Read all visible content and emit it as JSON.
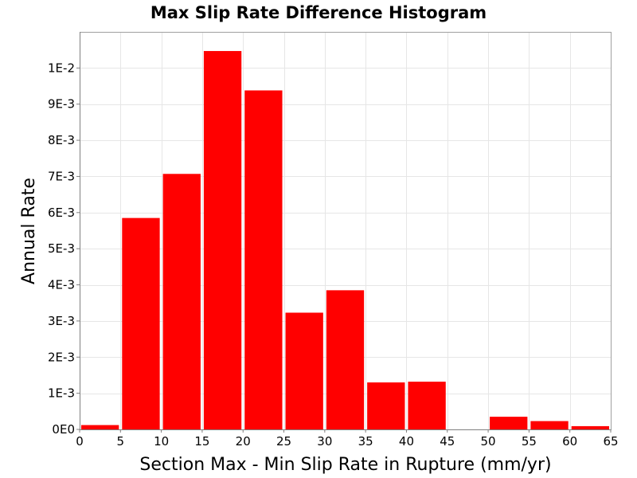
{
  "chart_data": {
    "type": "bar",
    "title": "Max Slip Rate Difference Histogram",
    "xlabel": "Section Max - Min Slip Rate in Rupture (mm/yr)",
    "ylabel": "Annual Rate",
    "xlim": [
      0,
      65
    ],
    "ylim": [
      0,
      0.011
    ],
    "grid": true,
    "bar_color": "#ff0000",
    "bins": [
      {
        "start": 0,
        "end": 5,
        "value": 0.00012
      },
      {
        "start": 5,
        "end": 10,
        "value": 0.00585
      },
      {
        "start": 10,
        "end": 15,
        "value": 0.00707
      },
      {
        "start": 15,
        "end": 20,
        "value": 0.01047
      },
      {
        "start": 20,
        "end": 25,
        "value": 0.00938
      },
      {
        "start": 25,
        "end": 30,
        "value": 0.00323
      },
      {
        "start": 30,
        "end": 35,
        "value": 0.00385
      },
      {
        "start": 35,
        "end": 40,
        "value": 0.0013
      },
      {
        "start": 40,
        "end": 45,
        "value": 0.00132
      },
      {
        "start": 45,
        "end": 50,
        "value": 0.0
      },
      {
        "start": 50,
        "end": 55,
        "value": 0.00035
      },
      {
        "start": 55,
        "end": 60,
        "value": 0.00023
      },
      {
        "start": 60,
        "end": 65,
        "value": 9e-05
      }
    ],
    "x_ticks": [
      {
        "value": 0,
        "label": "0"
      },
      {
        "value": 5,
        "label": "5"
      },
      {
        "value": 10,
        "label": "10"
      },
      {
        "value": 15,
        "label": "15"
      },
      {
        "value": 20,
        "label": "20"
      },
      {
        "value": 25,
        "label": "25"
      },
      {
        "value": 30,
        "label": "30"
      },
      {
        "value": 35,
        "label": "35"
      },
      {
        "value": 40,
        "label": "40"
      },
      {
        "value": 45,
        "label": "45"
      },
      {
        "value": 50,
        "label": "50"
      },
      {
        "value": 55,
        "label": "55"
      },
      {
        "value": 60,
        "label": "60"
      },
      {
        "value": 65,
        "label": "65"
      }
    ],
    "y_ticks": [
      {
        "value": 0,
        "label": "0E0"
      },
      {
        "value": 0.001,
        "label": "1E-3"
      },
      {
        "value": 0.002,
        "label": "2E-3"
      },
      {
        "value": 0.003,
        "label": "3E-3"
      },
      {
        "value": 0.004,
        "label": "4E-3"
      },
      {
        "value": 0.005,
        "label": "5E-3"
      },
      {
        "value": 0.006,
        "label": "6E-3"
      },
      {
        "value": 0.007,
        "label": "7E-3"
      },
      {
        "value": 0.008,
        "label": "8E-3"
      },
      {
        "value": 0.009,
        "label": "9E-3"
      },
      {
        "value": 0.01,
        "label": "1E-2"
      }
    ]
  }
}
